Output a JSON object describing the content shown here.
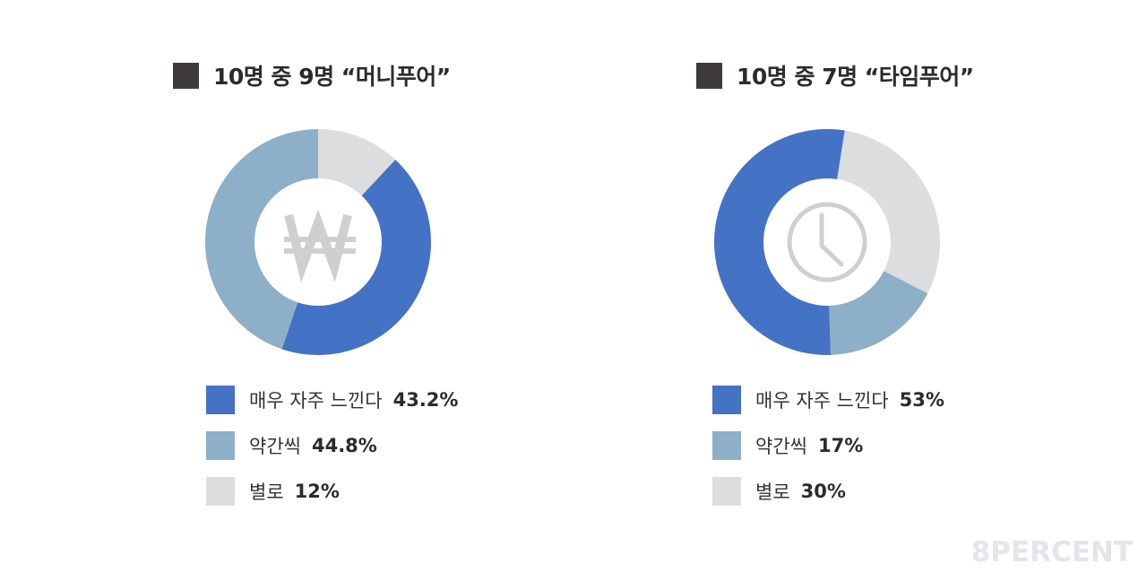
{
  "chart_data": [
    {
      "type": "pie",
      "title": "10명 중 9명 “머니푸어”",
      "center_icon": "won-sign-icon",
      "start_angle_deg": 0,
      "slices": [
        {
          "label": "별로",
          "value": 12,
          "display": "12%",
          "color": "#dcdddf"
        },
        {
          "label": "매우 자주 느낀다",
          "value": 43.2,
          "display": "43.2%",
          "color": "#4472c4"
        },
        {
          "label": "약간씩",
          "value": 44.8,
          "display": "44.8%",
          "color": "#8db0c8"
        }
      ],
      "legend_order": [
        1,
        2,
        0
      ]
    },
    {
      "type": "pie",
      "title": "10명 중 7명 “타임푸어”",
      "center_icon": "clock-icon",
      "start_angle_deg": 9,
      "slices": [
        {
          "label": "별로",
          "value": 30,
          "display": "30%",
          "color": "#dcdddf"
        },
        {
          "label": "약간씩",
          "value": 17,
          "display": "17%",
          "color": "#8db0c8"
        },
        {
          "label": "매우 자주 느낀다",
          "value": 53,
          "display": "53%",
          "color": "#4472c4"
        }
      ],
      "legend_order": [
        2,
        1,
        0
      ]
    }
  ],
  "watermark": "8PERCENT"
}
